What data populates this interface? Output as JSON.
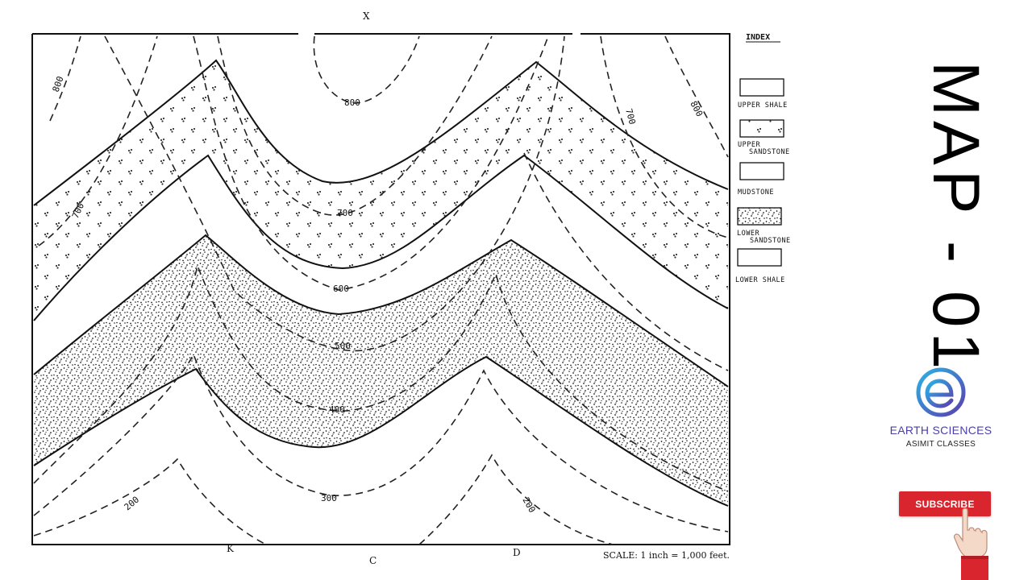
{
  "map": {
    "scale": "SCALE: 1 inch = 1,000 feet.",
    "top_mark": "X",
    "bottom_mark": "C",
    "bottom_left_mark": "K",
    "bottom_right_mark": "D",
    "contour_labels": [
      "800",
      "800",
      "800",
      "700",
      "700",
      "700",
      "600",
      "500",
      "400",
      "300",
      "200",
      "200"
    ]
  },
  "index": {
    "title": "INDEX",
    "items": [
      {
        "line1": "UPPER SHALE",
        "line2": "",
        "pattern": "blank"
      },
      {
        "line1": "UPPER",
        "line2": "SANDSTONE",
        "pattern": "sparse-dots"
      },
      {
        "line1": "MUDSTONE",
        "line2": "",
        "pattern": "blank"
      },
      {
        "line1": "LOWER",
        "line2": "SANDSTONE",
        "pattern": "dense-stipple"
      },
      {
        "line1": "LOWER SHALE",
        "line2": "",
        "pattern": "blank"
      }
    ]
  },
  "title": "MAP - 01",
  "brand": {
    "name": "EARTH SCIENCES",
    "sub": "ASIMIT CLASSES",
    "color": "#4a3fa8"
  },
  "subscribe": {
    "label": "SUBSCRIBE",
    "color": "#d9262e"
  }
}
